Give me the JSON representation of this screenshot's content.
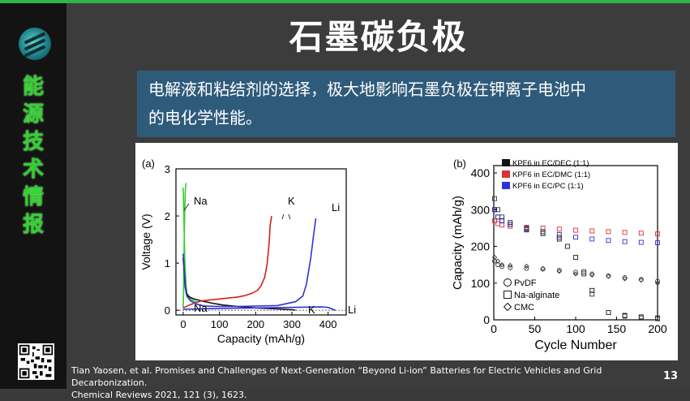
{
  "slide": {
    "sidebar_title_chars": [
      "能",
      "源",
      "技",
      "术",
      "情",
      "报"
    ],
    "title": "石墨碳负极",
    "text_line1": "电解液和粘结剂的选择，极大地影响石墨负极在钾离子电池中",
    "text_line2": "的电化学性能。",
    "citation_line1": "Tian Yaosen, et al. Promises and Challenges of Next-Generation “Beyond Li-ion” Batteries for Electric Vehicles and Grid Decarbonization.",
    "citation_line2": "Chemical Reviews 2021, 121 (3), 1623.",
    "page_number": "13",
    "accent_color": "#2fb34a",
    "textbox_color": "#2f5b7a"
  },
  "chart_data": [
    {
      "type": "line",
      "panel_label": "(a)",
      "xlabel": "Capacity (mAh/g)",
      "ylabel": "Voltage (V)",
      "xlim": [
        -20,
        450
      ],
      "ylim": [
        -0.1,
        3
      ],
      "xticks": [
        "0",
        "100",
        "200",
        "300",
        "400"
      ],
      "yticks": [
        "0",
        "1",
        "2",
        "3"
      ],
      "annotations": [
        "Na",
        "K",
        "Li",
        "Na",
        "K",
        "Li"
      ],
      "series": [
        {
          "color": "#33cc33",
          "x": [
            0,
            2,
            4,
            6,
            8,
            10,
            12,
            16,
            20,
            24,
            30,
            35,
            40
          ],
          "y": [
            2.6,
            2.0,
            1.2,
            0.8,
            0.5,
            0.35,
            0.3,
            0.26,
            0.24,
            0.22,
            0.2,
            0.18,
            0.17
          ]
        },
        {
          "color": "#33cc33",
          "x": [
            0,
            1,
            2,
            3,
            4,
            5,
            6,
            8
          ],
          "y": [
            0.05,
            0.4,
            1.0,
            1.6,
            2.0,
            2.3,
            2.55,
            2.7
          ]
        },
        {
          "color": "#111111",
          "x": [
            0,
            3,
            6,
            10,
            15,
            20,
            30,
            50,
            80,
            110,
            150,
            200,
            230,
            260,
            300,
            310
          ],
          "y": [
            1.1,
            0.8,
            0.5,
            0.35,
            0.3,
            0.27,
            0.24,
            0.2,
            0.15,
            0.11,
            0.08,
            0.05,
            0.04,
            0.03,
            0.01,
            0.0
          ]
        },
        {
          "color": "#d02020",
          "x": [
            0,
            20,
            50,
            100,
            150,
            170,
            190,
            205,
            215,
            225,
            232,
            237,
            240,
            244
          ],
          "y": [
            0.05,
            0.12,
            0.2,
            0.24,
            0.28,
            0.31,
            0.36,
            0.42,
            0.52,
            0.7,
            1.0,
            1.4,
            1.8,
            2.0
          ]
        },
        {
          "color": "#3333cc",
          "x": [
            0,
            5,
            10,
            20,
            40,
            60,
            100,
            150,
            200,
            260,
            310,
            330,
            340,
            352,
            360,
            366
          ],
          "y": [
            1.2,
            0.5,
            0.3,
            0.2,
            0.12,
            0.09,
            0.08,
            0.08,
            0.09,
            0.1,
            0.18,
            0.3,
            0.55,
            1.1,
            1.6,
            1.95
          ]
        },
        {
          "color": "#3333cc",
          "x": [
            0,
            50,
            100,
            200,
            300,
            380,
            400,
            420
          ],
          "y": [
            0.02,
            0.03,
            0.04,
            0.05,
            0.06,
            0.07,
            0.06,
            0.0
          ]
        },
        {
          "color": "#555555",
          "dashed": true,
          "x": [
            -20,
            450
          ],
          "y": [
            0,
            0
          ]
        }
      ]
    },
    {
      "type": "scatter",
      "panel_label": "(b)",
      "xlabel": "Cycle Number",
      "ylabel": "Capacity (mAh/g)",
      "xlim": [
        0,
        200
      ],
      "ylim": [
        0,
        420
      ],
      "xticks": [
        "0",
        "50",
        "100",
        "150",
        "200"
      ],
      "yticks": [
        "0",
        "100",
        "200",
        "300",
        "400"
      ],
      "legend_position": "top-left",
      "series": [
        {
          "name": "KPF6 in EC/DEC (1:1)",
          "color": "#111111",
          "marker": "square",
          "x": [
            1,
            5,
            10,
            20,
            40,
            60,
            80,
            90,
            100,
            110,
            120,
            140,
            160,
            180,
            200
          ],
          "y": [
            300,
            280,
            270,
            260,
            245,
            235,
            220,
            200,
            170,
            130,
            80,
            20,
            12,
            8,
            5
          ]
        },
        {
          "name": "KPF6 in EC/DMC (1:1)",
          "color": "#e03030",
          "marker": "square",
          "x": [
            1,
            5,
            10,
            20,
            40,
            60,
            80,
            100,
            120,
            140,
            160,
            180,
            200
          ],
          "y": [
            270,
            262,
            258,
            255,
            252,
            250,
            247,
            244,
            242,
            240,
            238,
            236,
            234
          ]
        },
        {
          "name": "KPF6 in EC/PC (1:1)",
          "color": "#3030e0",
          "marker": "square",
          "x": [
            1,
            5,
            10,
            20,
            40,
            60,
            80,
            100,
            120,
            140,
            160,
            180,
            200
          ],
          "y": [
            300,
            280,
            270,
            260,
            248,
            240,
            232,
            225,
            220,
            216,
            213,
            211,
            210
          ]
        },
        {
          "name": "PvDF",
          "color": "#333333",
          "marker": "circle",
          "x": [
            1,
            5,
            10,
            20,
            40,
            60,
            80,
            100,
            120,
            140,
            160,
            180,
            200
          ],
          "y": [
            160,
            150,
            145,
            142,
            140,
            138,
            135,
            130,
            125,
            120,
            115,
            110,
            105
          ]
        },
        {
          "name": "Na-alginate",
          "color": "#333333",
          "marker": "square-open",
          "x": [
            1,
            5,
            10,
            20,
            40,
            60,
            80,
            90,
            100,
            110,
            120,
            140,
            160,
            180,
            200
          ],
          "y": [
            330,
            300,
            280,
            265,
            250,
            240,
            225,
            200,
            170,
            125,
            70,
            20,
            10,
            5,
            3
          ]
        },
        {
          "name": "CMC",
          "color": "#333333",
          "marker": "diamond",
          "x": [
            1,
            5,
            10,
            20,
            40,
            60,
            80,
            100,
            120,
            140,
            160,
            180,
            200
          ],
          "y": [
            170,
            160,
            150,
            148,
            146,
            140,
            132,
            125,
            122,
            118,
            112,
            108,
            100
          ]
        }
      ]
    }
  ]
}
